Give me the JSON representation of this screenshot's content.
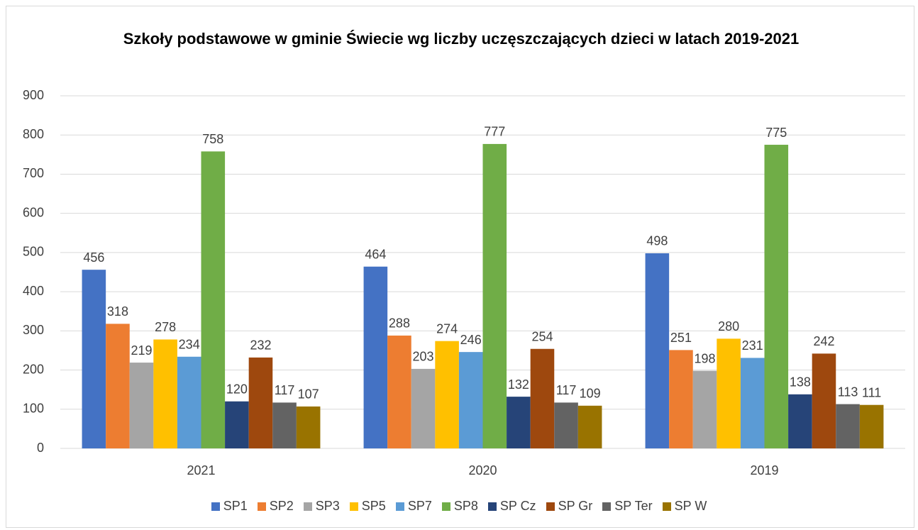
{
  "chart_data": {
    "type": "bar",
    "title": "Szkoły podstawowe w gminie Świecie wg liczby uczęszczających dzieci w latach 2019-2021",
    "categories": [
      "2021",
      "2020",
      "2019"
    ],
    "series": [
      {
        "name": "SP1",
        "color": "#4472c4",
        "values": [
          456,
          464,
          498
        ]
      },
      {
        "name": "SP2",
        "color": "#ed7d31",
        "values": [
          318,
          288,
          251
        ]
      },
      {
        "name": "SP3",
        "color": "#a5a5a5",
        "values": [
          219,
          203,
          198
        ]
      },
      {
        "name": "SP5",
        "color": "#ffc000",
        "values": [
          278,
          274,
          280
        ]
      },
      {
        "name": "SP7",
        "color": "#5b9bd5",
        "values": [
          234,
          246,
          231
        ]
      },
      {
        "name": "SP8",
        "color": "#70ad47",
        "values": [
          758,
          777,
          775
        ]
      },
      {
        "name": "SP Cz",
        "color": "#264478",
        "values": [
          120,
          132,
          138
        ]
      },
      {
        "name": "SP Gr",
        "color": "#9e480e",
        "values": [
          232,
          254,
          242
        ]
      },
      {
        "name": "SP Ter",
        "color": "#636363",
        "values": [
          117,
          117,
          113
        ]
      },
      {
        "name": "SP W",
        "color": "#997300",
        "values": [
          107,
          109,
          111
        ]
      }
    ],
    "ylim": [
      0,
      900
    ],
    "yticks": [
      0,
      100,
      200,
      300,
      400,
      500,
      600,
      700,
      800,
      900
    ],
    "grid": true,
    "legend": "bottom"
  }
}
